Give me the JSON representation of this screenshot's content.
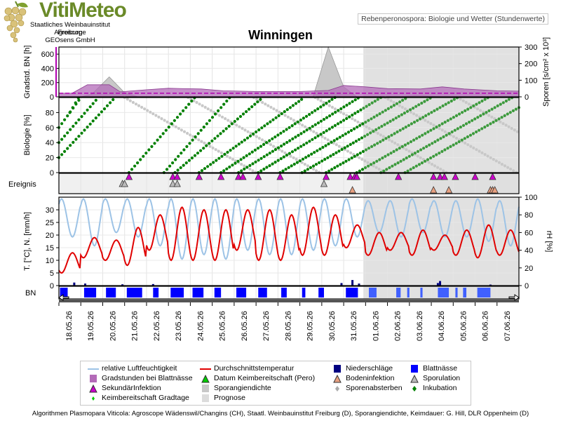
{
  "header": {
    "logo_name": "VitiMeteo",
    "logo_lines": [
      "Staatliches Weinbauinstitut Freiburg",
      "Agroscope",
      "GEOsens GmbH"
    ],
    "subtitle": "Rebenperonospora: Biologie und Wetter (Stundenwerte)",
    "station": "Winningen"
  },
  "footer": "Algorithmen Plasmopara Viticola: Agroscope Wädenswil/Changins (CH), Staatl. Weinbauinstitut Freiburg (D), Sporangiendichte, Keimdauer: G. Hill, DLR Oppenheim (D)",
  "colors": {
    "humidity": "#9dc3e6",
    "temperature": "#e00000",
    "precip": "#000080",
    "wetness": "#0000ff",
    "gradstunden": "#b36bb8",
    "secondary": "#cc00cc",
    "incubation": "#008000",
    "sporangium": "#c8c8c8",
    "forecast": "#dcdcdc"
  },
  "chart_data": {
    "type": "line",
    "x_dates": [
      "18.05.26",
      "19.05.26",
      "20.05.26",
      "21.05.26",
      "22.05.26",
      "23.05.26",
      "24.05.26",
      "25.05.26",
      "26.05.26",
      "27.05.26",
      "28.05.26",
      "29.05.26",
      "30.05.26",
      "31.05.26",
      "01.06.26",
      "02.06.26",
      "03.06.26",
      "04.06.26",
      "05.06.26",
      "06.06.26",
      "07.06.26"
    ],
    "forecast_start": "31.05.26 19:00",
    "panels": {
      "gradstunden": {
        "ylabel": "Gradstd. BN [h]",
        "ylim": [
          0,
          700
        ],
        "yticks": [
          "0",
          "200",
          "400",
          "600"
        ],
        "y2label": "Sporen [s/cm² x 10³]",
        "y2lim": [
          0,
          300
        ],
        "y2ticks": [
          "0",
          "100",
          "200",
          "300"
        ],
        "gradstunden_points": [
          [
            0,
            50
          ],
          [
            0.6,
            50
          ],
          [
            1.3,
            170
          ],
          [
            2.3,
            170
          ],
          [
            2.8,
            70
          ],
          [
            4,
            100
          ],
          [
            5,
            120
          ],
          [
            6.5,
            110
          ],
          [
            7.5,
            85
          ],
          [
            9,
            75
          ],
          [
            11,
            75
          ],
          [
            12.3,
            90
          ],
          [
            13,
            160
          ],
          [
            14,
            140
          ],
          [
            15,
            115
          ],
          [
            16.5,
            110
          ],
          [
            17.5,
            140
          ],
          [
            18.5,
            110
          ],
          [
            20,
            85
          ],
          [
            21,
            80
          ]
        ],
        "sporen_points": [
          [
            1,
            0
          ],
          [
            1.5,
            15
          ],
          [
            2.3,
            120
          ],
          [
            3,
            25
          ],
          [
            3.6,
            0
          ],
          [
            11.6,
            0
          ],
          [
            12.3,
            300
          ],
          [
            13,
            60
          ],
          [
            13.6,
            0
          ],
          [
            15.5,
            0
          ],
          [
            16.3,
            8
          ],
          [
            17.5,
            0
          ]
        ],
        "threshold": 50
      },
      "biologie": {
        "ylabel": "Biologie [%]",
        "ylim": [
          0,
          100
        ],
        "yticks": [
          "20",
          "40",
          "60",
          "80",
          "0"
        ],
        "incubation_lines": [
          [
            0,
            20,
            3.2
          ],
          [
            0,
            40,
            3.0
          ],
          [
            0,
            60,
            2.5
          ],
          [
            0.5,
            80,
            2.0
          ],
          [
            3.2,
            0,
            3.0
          ],
          [
            4.8,
            0,
            3.0
          ],
          [
            5.3,
            0,
            4.0
          ],
          [
            6.4,
            0,
            4.8
          ],
          [
            7.4,
            0,
            5.2
          ],
          [
            8.2,
            0,
            5.5
          ],
          [
            9.1,
            0,
            5.6
          ],
          [
            10.1,
            0,
            5.8
          ],
          [
            11.1,
            0,
            5.9
          ],
          [
            12.2,
            0,
            6.0
          ],
          [
            13.6,
            0,
            6.0
          ],
          [
            14.7,
            0,
            6.0
          ],
          [
            15.8,
            0,
            6.0
          ]
        ],
        "sporulation_lines": [
          [
            3.0,
            100,
            -6.0
          ],
          [
            5.9,
            100,
            -6.0
          ],
          [
            8.9,
            100,
            -6.0
          ],
          [
            11.7,
            100,
            -6.0
          ],
          [
            14.9,
            100,
            -6.0
          ],
          [
            18.2,
            100,
            -6.0
          ]
        ]
      },
      "ereignis": {
        "label": "Ereignis",
        "sekundaer": [
          3.2,
          5.2,
          5.4,
          6.4,
          7.4,
          8.2,
          8.4,
          9.1,
          10.1,
          12.2,
          13.3,
          13.5,
          13.6,
          15.5,
          17.1,
          17.4,
          17.6,
          18.1,
          19.0,
          19.8
        ],
        "sporulation": [
          2.9,
          3.0,
          5.2,
          5.4,
          12.1
        ],
        "boden": [
          13.4,
          17.1,
          17.8,
          19.7,
          19.8,
          19.9
        ]
      },
      "wetter": {
        "ylabel": "T. [°C], N. [mm/h]",
        "ylim": [
          0,
          35
        ],
        "yticks": [
          "0",
          "5",
          "10",
          "15",
          "20",
          "25",
          "30"
        ],
        "y2label": "rH [%]",
        "y2lim": [
          0,
          100
        ],
        "y2ticks": [
          "0",
          "20",
          "40",
          "60",
          "80",
          "100"
        ],
        "temp_daily_min": [
          5,
          11,
          10,
          8,
          14,
          10,
          10,
          10,
          14,
          10,
          10,
          12,
          12,
          15,
          12,
          14,
          12,
          14,
          12,
          11,
          12
        ],
        "temp_daily_max": [
          13,
          19,
          18,
          23,
          28,
          31,
          30,
          30,
          30,
          30,
          28,
          31,
          28,
          24,
          21,
          21,
          22,
          20,
          22,
          24,
          22
        ],
        "rh_daily_min": [
          55,
          45,
          60,
          55,
          45,
          30,
          35,
          30,
          40,
          35,
          35,
          40,
          45,
          55,
          60,
          55,
          60,
          55,
          55,
          50,
          45
        ],
        "rh_daily_max": [
          98,
          98,
          98,
          98,
          98,
          98,
          98,
          98,
          98,
          98,
          98,
          98,
          98,
          98,
          96,
          96,
          98,
          96,
          96,
          98,
          96
        ],
        "precip_hourly": [
          [
            0.7,
            1.2
          ],
          [
            1.2,
            0.8
          ],
          [
            2.9,
            0.5
          ],
          [
            4.3,
            0.6
          ],
          [
            12.9,
            1.0
          ],
          [
            13.4,
            2.2
          ],
          [
            13.7,
            0.8
          ],
          [
            17.3,
            1.0
          ],
          [
            17.4,
            1.8
          ],
          [
            19.7,
            0.4
          ]
        ]
      },
      "bn": {
        "label": "BN",
        "wet_intervals": [
          [
            0.05,
            0.4
          ],
          [
            1.15,
            1.7
          ],
          [
            2.15,
            2.6
          ],
          [
            3.1,
            3.8
          ],
          [
            4.3,
            4.55
          ],
          [
            5.1,
            5.7
          ],
          [
            6.1,
            6.6
          ],
          [
            7.1,
            7.4
          ],
          [
            8.1,
            8.55
          ],
          [
            9.1,
            9.5
          ],
          [
            10.15,
            10.4
          ],
          [
            11.1,
            11.25
          ],
          [
            11.85,
            12.1
          ],
          [
            13.1,
            13.65
          ],
          [
            14.15,
            14.5
          ],
          [
            15.4,
            15.6
          ],
          [
            15.9,
            16.0
          ],
          [
            16.5,
            16.6
          ],
          [
            17.3,
            17.8
          ],
          [
            18.1,
            18.2
          ],
          [
            18.45,
            18.6
          ],
          [
            19.1,
            19.7
          ]
        ]
      }
    }
  },
  "legend": {
    "items": [
      "relative Luftfeuchtigkeit",
      "Durchschnittstemperatur",
      "Niederschläge",
      "Blattnässe",
      "Gradstunden bei Blattnässe",
      "Datum Keimbereitschaft (Pero)",
      "Bodeninfektion",
      "Sporulation",
      "SekundärInfektion",
      "Sporangiendichte",
      "Sporenabsterben",
      "Inkubation",
      "Keimbereitschaft Gradtage",
      "Prognose"
    ]
  }
}
